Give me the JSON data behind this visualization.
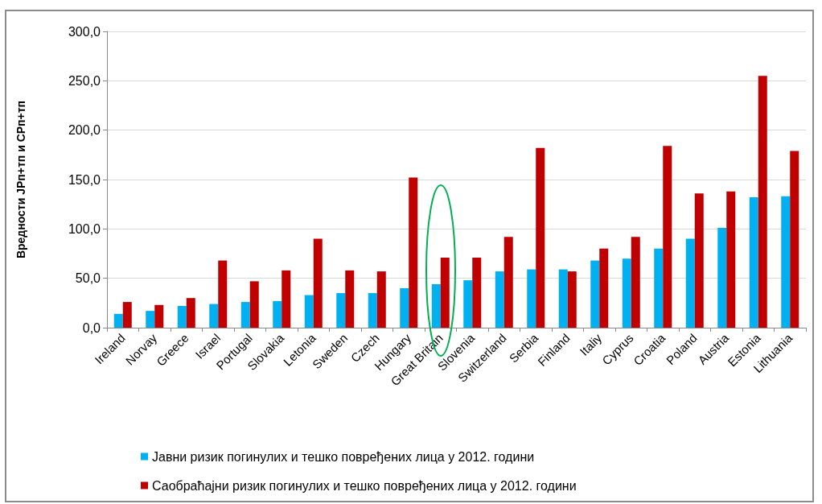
{
  "chart_data": {
    "type": "bar",
    "ylabel": "Вредности ЈРп+тп и СРп+тп",
    "categories": [
      "Ireland",
      "Norvay",
      "Greece",
      "Israel",
      "Portugal",
      "Slovakia",
      "Letonia",
      "Sweden",
      "Czech",
      "Hungary",
      "Great Britain",
      "Slovenia",
      "Switzerland",
      "Serbia",
      "Finland",
      "Italiy",
      "Cyprus",
      "Croatia",
      "Poland",
      "Austria",
      "Estonia",
      "Lithuania"
    ],
    "series": [
      {
        "name": "Јавни ризик погинулих и тешко повређених лица у 2012. години",
        "color": "#00b0f0",
        "values": [
          14,
          17,
          22,
          24,
          26,
          27,
          33,
          35,
          35,
          40,
          44,
          48,
          57,
          59,
          59,
          68,
          70,
          80,
          90,
          101,
          132,
          133
        ]
      },
      {
        "name": "Саобраћајни ризик погинулих и тешко повређених лица у 2012. години",
        "color": "#c00000",
        "values": [
          26,
          23,
          30,
          68,
          47,
          58,
          90,
          58,
          57,
          152,
          71,
          71,
          92,
          182,
          57,
          80,
          92,
          184,
          136,
          138,
          255,
          179
        ]
      }
    ],
    "ylim": [
      0,
      300
    ],
    "yticks": [
      {
        "value": 0,
        "label": "0,0"
      },
      {
        "value": 50,
        "label": "50,0"
      },
      {
        "value": 100,
        "label": "100,0"
      },
      {
        "value": 150,
        "label": "150,0"
      },
      {
        "value": 200,
        "label": "200,0"
      },
      {
        "value": 250,
        "label": "250,0"
      },
      {
        "value": 300,
        "label": "300,0"
      }
    ],
    "grid": "y",
    "legend": "bottom"
  }
}
